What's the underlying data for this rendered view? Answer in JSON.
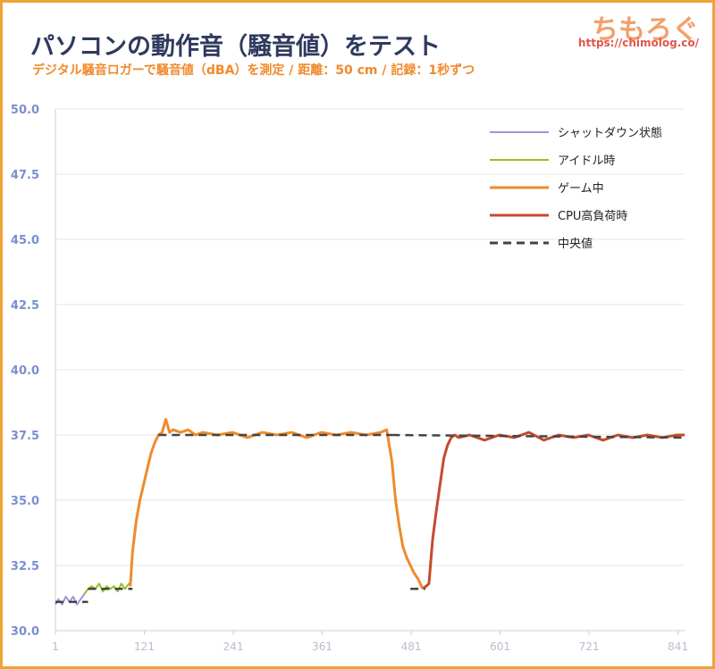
{
  "header": {
    "title": "パソコンの動作音（騒音値）をテスト",
    "subtitle": "デジタル騒音ロガーで騒音値（dBA）を測定 / 距離：50 cm / 記録：1秒ずつ",
    "brand": "ちもろぐ",
    "url": "https://chimolog.co/"
  },
  "chart_data": {
    "type": "line",
    "title": "パソコンの動作音（騒音値）をテスト",
    "subtitle": "デジタル騒音ロガーで騒音値（dBA）を測定 / 距離：50 cm / 記録：1秒ずつ",
    "xlim": [
      1,
      850
    ],
    "ylim": [
      30,
      50
    ],
    "x_ticks": [
      1,
      121,
      241,
      361,
      481,
      601,
      721,
      841
    ],
    "y_ticks": [
      "30.0",
      "32.5",
      "35.0",
      "37.5",
      "40.0",
      "42.5",
      "45.0",
      "47.5",
      "50.0"
    ],
    "grid": true,
    "legend_position": "top-right",
    "series": [
      {
        "name": "シャットダウン状態",
        "color": "#9b96e0",
        "x": [
          1,
          5,
          10,
          15,
          20,
          25,
          30,
          35,
          40
        ],
        "y": [
          31.0,
          31.2,
          31.0,
          31.3,
          31.1,
          31.3,
          31.0,
          31.2,
          31.4
        ]
      },
      {
        "name": "アイドル時",
        "color": "#95c11f",
        "x": [
          40,
          45,
          50,
          55,
          60,
          65,
          70,
          75,
          80,
          85,
          90,
          95,
          100,
          102
        ],
        "y": [
          31.4,
          31.6,
          31.7,
          31.6,
          31.8,
          31.5,
          31.7,
          31.6,
          31.7,
          31.5,
          31.8,
          31.6,
          31.8,
          31.7
        ]
      },
      {
        "name": "ゲーム中",
        "color": "#f08a2c",
        "x": [
          102,
          105,
          110,
          115,
          120,
          125,
          130,
          135,
          140,
          145,
          150,
          155,
          160,
          170,
          180,
          190,
          200,
          220,
          240,
          260,
          280,
          300,
          320,
          340,
          360,
          380,
          400,
          420,
          440,
          448,
          455,
          460,
          465,
          470,
          475,
          480,
          485,
          490,
          495,
          497
        ],
        "y": [
          31.7,
          33.0,
          34.2,
          35.0,
          35.6,
          36.2,
          36.8,
          37.2,
          37.5,
          37.6,
          38.1,
          37.6,
          37.7,
          37.6,
          37.7,
          37.5,
          37.6,
          37.5,
          37.6,
          37.4,
          37.6,
          37.5,
          37.6,
          37.4,
          37.6,
          37.5,
          37.6,
          37.5,
          37.6,
          37.7,
          36.5,
          35.0,
          34.0,
          33.2,
          32.8,
          32.5,
          32.2,
          32.0,
          31.7,
          31.6
        ]
      },
      {
        "name": "CPU高負荷時",
        "color": "#c54b2c",
        "x": [
          497,
          505,
          510,
          515,
          520,
          525,
          530,
          535,
          540,
          545,
          560,
          580,
          600,
          620,
          640,
          660,
          680,
          700,
          720,
          740,
          760,
          780,
          800,
          820,
          840,
          850
        ],
        "y": [
          31.6,
          31.8,
          33.5,
          34.6,
          35.6,
          36.6,
          37.1,
          37.4,
          37.5,
          37.4,
          37.5,
          37.3,
          37.5,
          37.4,
          37.6,
          37.3,
          37.5,
          37.4,
          37.5,
          37.3,
          37.5,
          37.4,
          37.5,
          37.4,
          37.5,
          37.5
        ]
      },
      {
        "name": "中央値",
        "color": "#444444",
        "dashed": true,
        "segments": [
          {
            "x": [
              1,
              45
            ],
            "y": [
              31.1,
              31.1
            ]
          },
          {
            "x": [
              45,
              105
            ],
            "y": [
              31.6,
              31.6
            ]
          },
          {
            "x": [
              140,
              455
            ],
            "y": [
              37.5,
              37.5
            ]
          },
          {
            "x": [
              455,
              850
            ],
            "y": [
              37.5,
              37.4
            ]
          },
          {
            "x": [
              480,
              500
            ],
            "y": [
              31.6,
              31.6
            ]
          }
        ]
      }
    ]
  }
}
